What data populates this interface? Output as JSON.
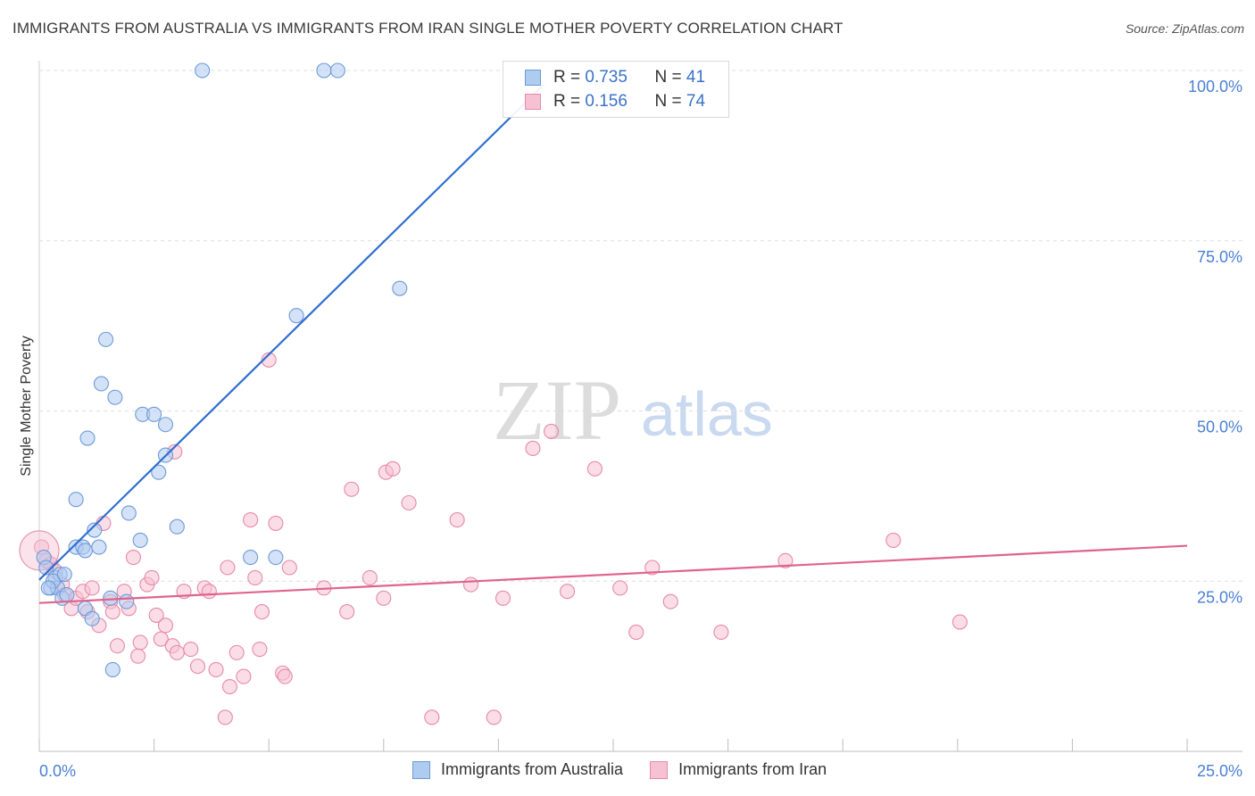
{
  "title": "IMMIGRANTS FROM AUSTRALIA VS IMMIGRANTS FROM IRAN SINGLE MOTHER POVERTY CORRELATION CHART",
  "source": "Source: ZipAtlas.com",
  "watermark": {
    "zip": "ZIP",
    "atlas": "atlas"
  },
  "legend": {
    "australia": {
      "r_label": "R =",
      "r_value": "0.735",
      "n_label": "N =",
      "n_value": "41"
    },
    "iran": {
      "r_label": "R =",
      "r_value": "0.156",
      "n_label": "N =",
      "n_value": "74"
    }
  },
  "colors": {
    "australia_fill": "#aecbf0",
    "australia_stroke": "#6d9ad8",
    "australia_line": "#2f6fcf",
    "iran_fill": "#f6c1d2",
    "iran_stroke": "#e68aa8",
    "iran_line": "#e0638d"
  },
  "chart_data": {
    "type": "scatter",
    "title": "IMMIGRANTS FROM AUSTRALIA VS IMMIGRANTS FROM IRAN SINGLE MOTHER POVERTY CORRELATION CHART",
    "xlabel": "",
    "ylabel": "Single Mother Poverty",
    "xlim": [
      0,
      25
    ],
    "ylim": [
      0,
      102
    ],
    "x_tick_labels": {
      "left": "0.0%",
      "right": "25.0%"
    },
    "y_ticks": [
      {
        "value": 25,
        "label": "25.0%"
      },
      {
        "value": 50,
        "label": "50.0%"
      },
      {
        "value": 75,
        "label": "75.0%"
      },
      {
        "value": 100,
        "label": "100.0%"
      }
    ],
    "series": [
      {
        "name": "Immigrants from Australia",
        "r": 0.735,
        "n": 41,
        "trend": {
          "x0": 0.0,
          "y0": 25.2,
          "x1": 11.0,
          "y1": 98.0
        },
        "points": [
          [
            0.1,
            28.5
          ],
          [
            0.15,
            27.0
          ],
          [
            0.25,
            24.0
          ],
          [
            0.35,
            25.5
          ],
          [
            0.4,
            24.0
          ],
          [
            0.45,
            26.0
          ],
          [
            0.5,
            22.5
          ],
          [
            0.6,
            23.0
          ],
          [
            0.8,
            30.0
          ],
          [
            0.8,
            37.0
          ],
          [
            0.95,
            30.0
          ],
          [
            1.0,
            29.5
          ],
          [
            1.05,
            46.0
          ],
          [
            1.0,
            21.0
          ],
          [
            1.15,
            19.5
          ],
          [
            1.2,
            32.5
          ],
          [
            1.3,
            30.0
          ],
          [
            1.35,
            54.0
          ],
          [
            1.45,
            60.5
          ],
          [
            1.55,
            22.5
          ],
          [
            1.6,
            12.0
          ],
          [
            1.65,
            52.0
          ],
          [
            1.9,
            22.0
          ],
          [
            1.95,
            35.0
          ],
          [
            2.2,
            31.0
          ],
          [
            2.25,
            49.5
          ],
          [
            2.5,
            49.5
          ],
          [
            2.6,
            41.0
          ],
          [
            2.75,
            48.0
          ],
          [
            2.75,
            43.5
          ],
          [
            3.0,
            33.0
          ],
          [
            3.55,
            100.0
          ],
          [
            4.6,
            28.5
          ],
          [
            5.15,
            28.5
          ],
          [
            5.6,
            64.0
          ],
          [
            6.2,
            100.0
          ],
          [
            6.5,
            100.0
          ],
          [
            7.85,
            68.0
          ],
          [
            0.3,
            25.0
          ],
          [
            0.55,
            26.0
          ],
          [
            0.2,
            24.0
          ]
        ]
      },
      {
        "name": "Immigrants from Iran",
        "r": 0.156,
        "n": 74,
        "trend": {
          "x0": 0.0,
          "y0": 21.8,
          "x1": 25.0,
          "y1": 30.2
        },
        "points": [
          [
            0.05,
            30.0
          ],
          [
            0.15,
            28.0
          ],
          [
            0.25,
            27.5
          ],
          [
            0.35,
            26.5
          ],
          [
            0.5,
            24.5
          ],
          [
            0.55,
            23.0
          ],
          [
            0.7,
            21.0
          ],
          [
            0.8,
            22.5
          ],
          [
            0.95,
            23.5
          ],
          [
            1.05,
            20.5
          ],
          [
            1.15,
            24.0
          ],
          [
            1.3,
            18.5
          ],
          [
            1.4,
            33.5
          ],
          [
            1.55,
            22.0
          ],
          [
            1.6,
            20.5
          ],
          [
            1.7,
            15.5
          ],
          [
            1.85,
            23.5
          ],
          [
            1.95,
            21.0
          ],
          [
            2.05,
            28.5
          ],
          [
            2.15,
            14.0
          ],
          [
            2.2,
            16.0
          ],
          [
            2.35,
            24.5
          ],
          [
            2.45,
            25.5
          ],
          [
            2.55,
            20.0
          ],
          [
            2.65,
            16.5
          ],
          [
            2.75,
            18.5
          ],
          [
            2.95,
            44.0
          ],
          [
            2.9,
            15.5
          ],
          [
            3.0,
            14.5
          ],
          [
            3.15,
            23.5
          ],
          [
            3.3,
            15.0
          ],
          [
            3.45,
            12.5
          ],
          [
            3.6,
            24.0
          ],
          [
            3.85,
            12.0
          ],
          [
            4.05,
            5.0
          ],
          [
            4.15,
            9.5
          ],
          [
            4.1,
            27.0
          ],
          [
            4.3,
            14.5
          ],
          [
            4.45,
            11.0
          ],
          [
            4.6,
            34.0
          ],
          [
            4.7,
            25.5
          ],
          [
            4.8,
            15.0
          ],
          [
            4.85,
            20.5
          ],
          [
            5.0,
            57.5
          ],
          [
            5.15,
            33.5
          ],
          [
            5.3,
            11.5
          ],
          [
            5.35,
            11.0
          ],
          [
            5.45,
            27.0
          ],
          [
            6.2,
            24.0
          ],
          [
            6.7,
            20.5
          ],
          [
            6.8,
            38.5
          ],
          [
            7.2,
            25.5
          ],
          [
            7.5,
            22.5
          ],
          [
            7.55,
            41.0
          ],
          [
            7.7,
            41.5
          ],
          [
            8.05,
            36.5
          ],
          [
            8.55,
            5.0
          ],
          [
            9.1,
            34.0
          ],
          [
            9.4,
            24.5
          ],
          [
            9.9,
            5.0
          ],
          [
            10.1,
            22.5
          ],
          [
            10.75,
            44.5
          ],
          [
            11.15,
            47.0
          ],
          [
            11.5,
            23.5
          ],
          [
            12.1,
            41.5
          ],
          [
            12.65,
            24.0
          ],
          [
            13.0,
            17.5
          ],
          [
            13.35,
            27.0
          ],
          [
            13.75,
            22.0
          ],
          [
            14.85,
            17.5
          ],
          [
            16.25,
            28.0
          ],
          [
            18.6,
            31.0
          ],
          [
            20.05,
            19.0
          ],
          [
            3.7,
            23.5
          ]
        ]
      }
    ]
  },
  "bottom_legend": [
    {
      "label": "Immigrants from Australia"
    },
    {
      "label": "Immigrants from Iran"
    }
  ]
}
